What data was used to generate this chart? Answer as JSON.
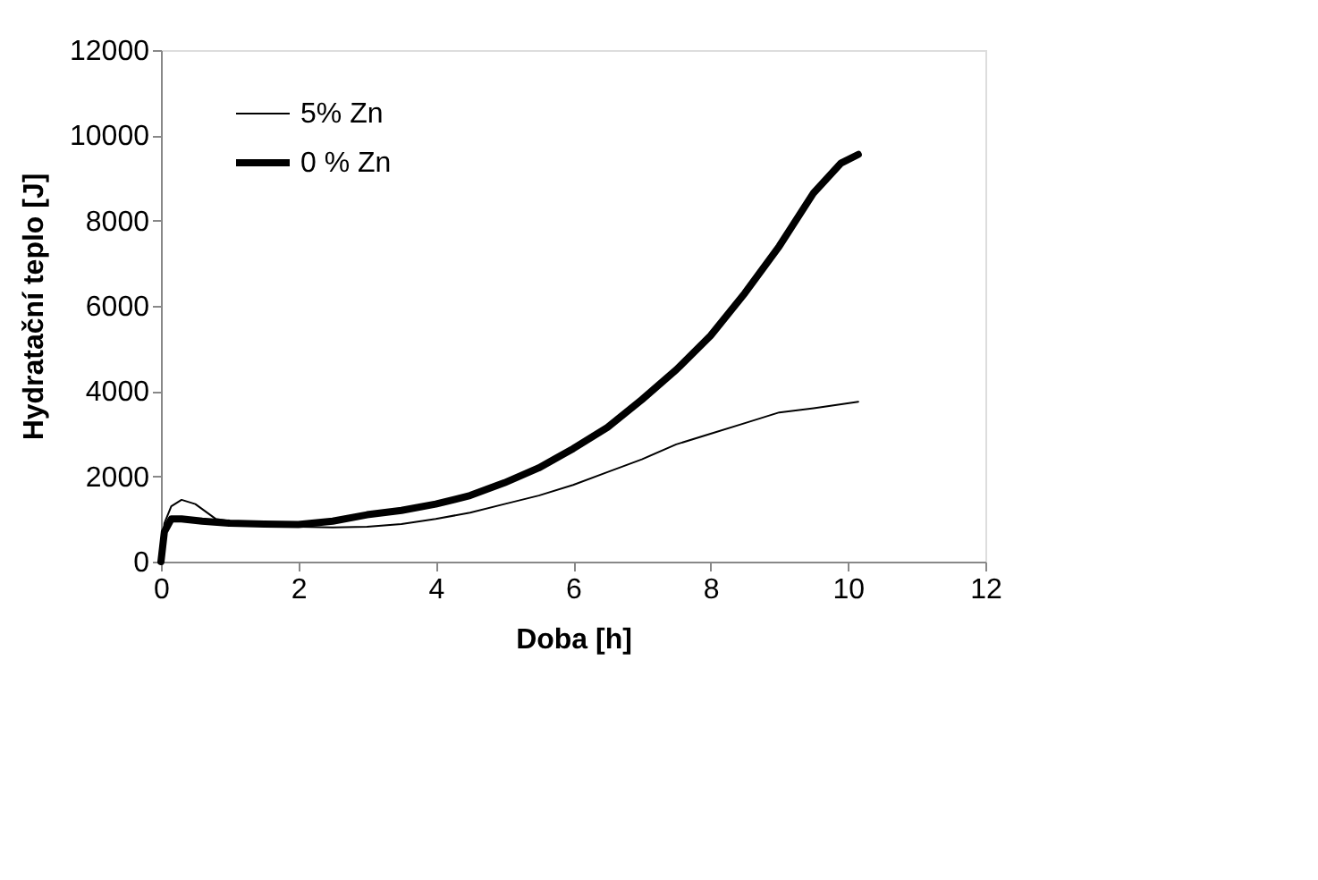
{
  "chart_data": {
    "type": "line",
    "xlabel": "Doba [h]",
    "ylabel": "Hydratační teplo [J]",
    "xlim": [
      0,
      12
    ],
    "xticks": [
      0,
      2,
      4,
      6,
      8,
      10,
      12
    ],
    "ylim": [
      0,
      12000
    ],
    "yticks": [
      0,
      2000,
      4000,
      6000,
      8000,
      10000,
      12000
    ],
    "grid": false,
    "legend": "top left",
    "marker": "none",
    "line_style": "solid",
    "series": [
      {
        "name": "5% Zn",
        "color": "#000000",
        "x": [
          0,
          0.05,
          0.15,
          0.3,
          0.5,
          0.8,
          1.2,
          1.6,
          2.0,
          2.5,
          3.0,
          3.5,
          4.0,
          4.5,
          5.0,
          5.5,
          6.0,
          6.5,
          7.0,
          7.5,
          8.0,
          8.5,
          9.0,
          9.5,
          10.15
        ],
        "values": [
          0,
          900,
          1300,
          1450,
          1350,
          1000,
          900,
          850,
          820,
          800,
          820,
          880,
          1000,
          1150,
          1350,
          1550,
          1800,
          2100,
          2400,
          2750,
          3000,
          3250,
          3500,
          3600,
          3750
        ]
      },
      {
        "name": "0 % Zn",
        "color": "#000000",
        "x": [
          0,
          0.05,
          0.15,
          0.3,
          0.6,
          1.0,
          1.5,
          2.0,
          2.5,
          3.0,
          3.5,
          4.0,
          4.5,
          5.0,
          5.5,
          6.0,
          6.5,
          7.0,
          7.5,
          8.0,
          8.5,
          9.0,
          9.5,
          9.9,
          10.15
        ],
        "values": [
          0,
          700,
          1000,
          1000,
          950,
          900,
          880,
          870,
          950,
          1100,
          1200,
          1350,
          1550,
          1850,
          2200,
          2650,
          3150,
          3800,
          4500,
          5300,
          6300,
          7400,
          8650,
          9350,
          9550
        ]
      }
    ]
  }
}
